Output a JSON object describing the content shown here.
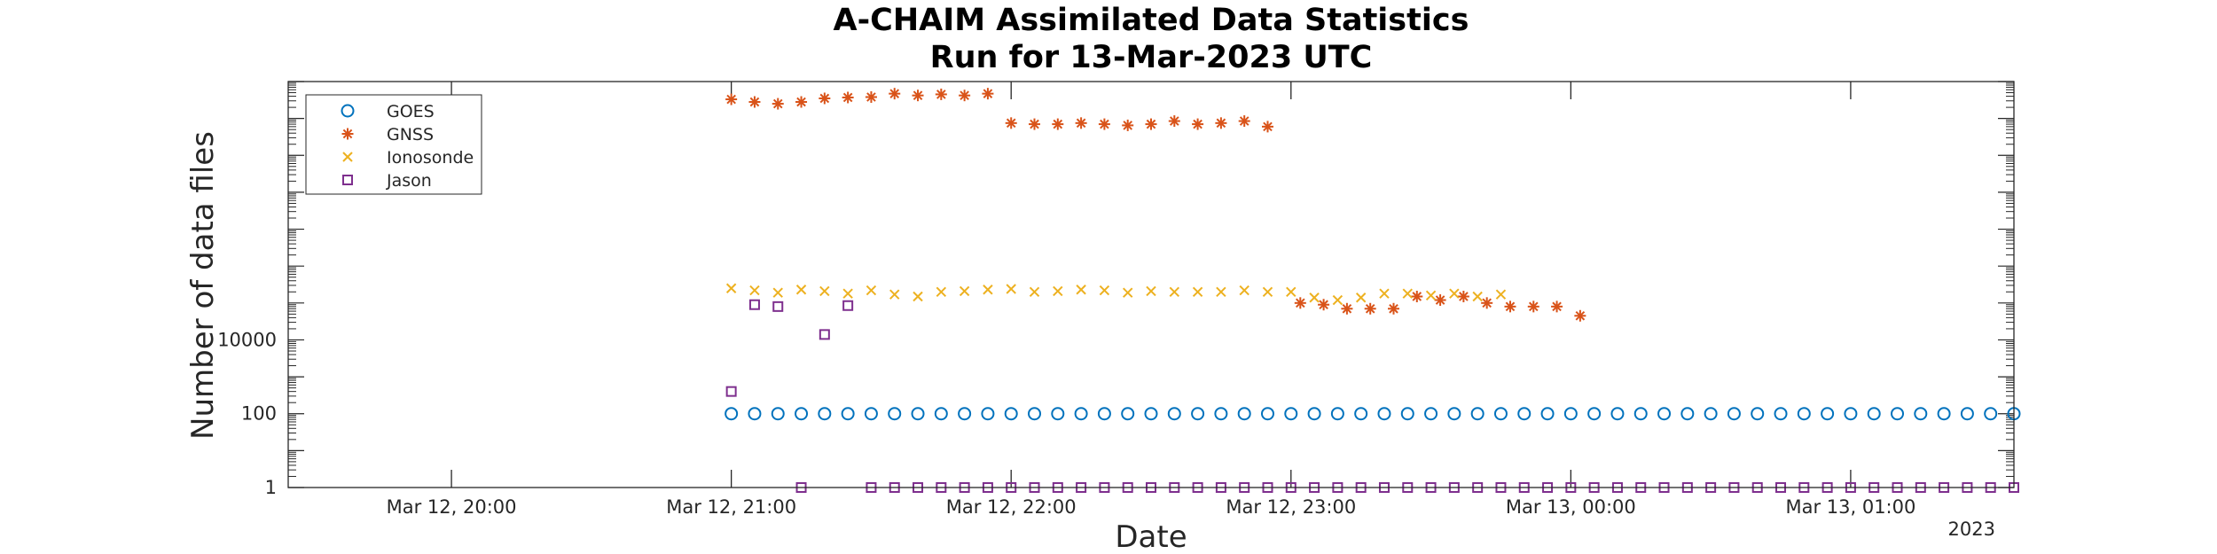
{
  "chart_data": {
    "type": "scatter",
    "title": "A-CHAIM Assimilated Data Statistics",
    "subtitle": "Run for 13-Mar-2023 UTC",
    "xlabel": "Date",
    "ylabel": "Number of data files",
    "x_ticks": [
      "Mar 12, 20:00",
      "Mar 12, 21:00",
      "Mar 12, 22:00",
      "Mar 12, 23:00",
      "Mar 13, 00:00",
      "Mar 13, 01:00"
    ],
    "x_secondary_label": "2023",
    "xlim": [
      "2023-03-12T19:25",
      "2023-03-13T01:35"
    ],
    "y_scale": "log",
    "y_ticks": [
      1,
      100,
      10000
    ],
    "y_tick_labels": [
      "1",
      "100",
      "10000"
    ],
    "ylim": [
      1,
      100000000000
    ],
    "grid": false,
    "legend_position": "top-left",
    "series": [
      {
        "name": "GOES",
        "marker": "circle",
        "color": "#0072BD",
        "points": [
          [
            "2023-03-12T21:00",
            100
          ],
          [
            "2023-03-12T21:05",
            100
          ],
          [
            "2023-03-12T21:10",
            100
          ],
          [
            "2023-03-12T21:15",
            100
          ],
          [
            "2023-03-12T21:20",
            100
          ],
          [
            "2023-03-12T21:25",
            100
          ],
          [
            "2023-03-12T21:30",
            100
          ],
          [
            "2023-03-12T21:35",
            100
          ],
          [
            "2023-03-12T21:40",
            100
          ],
          [
            "2023-03-12T21:45",
            100
          ],
          [
            "2023-03-12T21:50",
            100
          ],
          [
            "2023-03-12T21:55",
            100
          ],
          [
            "2023-03-12T22:00",
            100
          ],
          [
            "2023-03-12T22:05",
            100
          ],
          [
            "2023-03-12T22:10",
            100
          ],
          [
            "2023-03-12T22:15",
            100
          ],
          [
            "2023-03-12T22:20",
            100
          ],
          [
            "2023-03-12T22:25",
            100
          ],
          [
            "2023-03-12T22:30",
            100
          ],
          [
            "2023-03-12T22:35",
            100
          ],
          [
            "2023-03-12T22:40",
            100
          ],
          [
            "2023-03-12T22:45",
            100
          ],
          [
            "2023-03-12T22:50",
            100
          ],
          [
            "2023-03-12T22:55",
            100
          ],
          [
            "2023-03-12T23:00",
            100
          ],
          [
            "2023-03-12T23:05",
            100
          ],
          [
            "2023-03-12T23:10",
            100
          ],
          [
            "2023-03-12T23:15",
            100
          ],
          [
            "2023-03-12T23:20",
            100
          ],
          [
            "2023-03-12T23:25",
            100
          ],
          [
            "2023-03-12T23:30",
            100
          ],
          [
            "2023-03-12T23:35",
            100
          ],
          [
            "2023-03-12T23:40",
            100
          ],
          [
            "2023-03-12T23:45",
            100
          ],
          [
            "2023-03-12T23:50",
            100
          ],
          [
            "2023-03-12T23:55",
            100
          ],
          [
            "2023-03-13T00:00",
            100
          ],
          [
            "2023-03-13T00:05",
            100
          ],
          [
            "2023-03-13T00:10",
            100
          ],
          [
            "2023-03-13T00:15",
            100
          ],
          [
            "2023-03-13T00:20",
            100
          ],
          [
            "2023-03-13T00:25",
            100
          ],
          [
            "2023-03-13T00:30",
            100
          ],
          [
            "2023-03-13T00:35",
            100
          ],
          [
            "2023-03-13T00:40",
            100
          ],
          [
            "2023-03-13T00:45",
            100
          ],
          [
            "2023-03-13T00:50",
            100
          ],
          [
            "2023-03-13T00:55",
            100
          ],
          [
            "2023-03-13T01:00",
            100
          ],
          [
            "2023-03-13T01:05",
            100
          ],
          [
            "2023-03-13T01:10",
            100
          ],
          [
            "2023-03-13T01:15",
            100
          ],
          [
            "2023-03-13T01:20",
            100
          ],
          [
            "2023-03-13T01:25",
            100
          ],
          [
            "2023-03-13T01:30",
            100
          ],
          [
            "2023-03-13T01:35",
            100
          ]
        ]
      },
      {
        "name": "GNSS",
        "marker": "asterisk",
        "color": "#D95319",
        "points": [
          [
            "2023-03-12T21:00",
            33000000000
          ],
          [
            "2023-03-12T21:05",
            28000000000
          ],
          [
            "2023-03-12T21:10",
            25000000000
          ],
          [
            "2023-03-12T21:15",
            28000000000
          ],
          [
            "2023-03-12T21:20",
            35000000000
          ],
          [
            "2023-03-12T21:25",
            37000000000
          ],
          [
            "2023-03-12T21:30",
            38000000000
          ],
          [
            "2023-03-12T21:35",
            47000000000
          ],
          [
            "2023-03-12T21:40",
            42000000000
          ],
          [
            "2023-03-12T21:45",
            45000000000
          ],
          [
            "2023-03-12T21:50",
            42000000000
          ],
          [
            "2023-03-12T21:55",
            47000000000
          ],
          [
            "2023-03-12T22:00",
            7500000000
          ],
          [
            "2023-03-12T22:05",
            7000000000
          ],
          [
            "2023-03-12T22:10",
            7000000000
          ],
          [
            "2023-03-12T22:15",
            7500000000
          ],
          [
            "2023-03-12T22:20",
            7000000000
          ],
          [
            "2023-03-12T22:25",
            6500000000
          ],
          [
            "2023-03-12T22:30",
            7000000000
          ],
          [
            "2023-03-12T22:35",
            8500000000
          ],
          [
            "2023-03-12T22:40",
            7000000000
          ],
          [
            "2023-03-12T22:45",
            7500000000
          ],
          [
            "2023-03-12T22:50",
            8500000000
          ],
          [
            "2023-03-12T22:55",
            6000000000
          ],
          [
            "2023-03-12T23:02",
            100000
          ],
          [
            "2023-03-12T23:07",
            90000
          ],
          [
            "2023-03-12T23:12",
            70000
          ],
          [
            "2023-03-12T23:17",
            70000
          ],
          [
            "2023-03-12T23:22",
            70000
          ],
          [
            "2023-03-12T23:27",
            150000
          ],
          [
            "2023-03-12T23:32",
            120000
          ],
          [
            "2023-03-12T23:37",
            150000
          ],
          [
            "2023-03-12T23:42",
            100000
          ],
          [
            "2023-03-12T23:47",
            80000
          ],
          [
            "2023-03-12T23:52",
            80000
          ],
          [
            "2023-03-12T23:57",
            80000
          ],
          [
            "2023-03-13T00:02",
            45000
          ]
        ]
      },
      {
        "name": "Ionosonde",
        "marker": "x",
        "color": "#EDB120",
        "points": [
          [
            "2023-03-12T21:00",
            250000
          ],
          [
            "2023-03-12T21:05",
            220000
          ],
          [
            "2023-03-12T21:10",
            190000
          ],
          [
            "2023-03-12T21:15",
            230000
          ],
          [
            "2023-03-12T21:20",
            210000
          ],
          [
            "2023-03-12T21:25",
            180000
          ],
          [
            "2023-03-12T21:30",
            220000
          ],
          [
            "2023-03-12T21:35",
            170000
          ],
          [
            "2023-03-12T21:40",
            150000
          ],
          [
            "2023-03-12T21:45",
            200000
          ],
          [
            "2023-03-12T21:50",
            210000
          ],
          [
            "2023-03-12T21:55",
            230000
          ],
          [
            "2023-03-12T22:00",
            240000
          ],
          [
            "2023-03-12T22:05",
            200000
          ],
          [
            "2023-03-12T22:10",
            210000
          ],
          [
            "2023-03-12T22:15",
            230000
          ],
          [
            "2023-03-12T22:20",
            220000
          ],
          [
            "2023-03-12T22:25",
            190000
          ],
          [
            "2023-03-12T22:30",
            210000
          ],
          [
            "2023-03-12T22:35",
            200000
          ],
          [
            "2023-03-12T22:40",
            200000
          ],
          [
            "2023-03-12T22:45",
            200000
          ],
          [
            "2023-03-12T22:50",
            220000
          ],
          [
            "2023-03-12T22:55",
            200000
          ],
          [
            "2023-03-12T23:00",
            200000
          ],
          [
            "2023-03-12T23:05",
            140000
          ],
          [
            "2023-03-12T23:10",
            120000
          ],
          [
            "2023-03-12T23:15",
            140000
          ],
          [
            "2023-03-12T23:20",
            180000
          ],
          [
            "2023-03-12T23:25",
            180000
          ],
          [
            "2023-03-12T23:30",
            160000
          ],
          [
            "2023-03-12T23:35",
            180000
          ],
          [
            "2023-03-12T23:40",
            150000
          ],
          [
            "2023-03-12T23:45",
            170000
          ]
        ]
      },
      {
        "name": "Jason",
        "marker": "square",
        "color": "#7E2F8E",
        "points": [
          [
            "2023-03-12T21:00",
            400
          ],
          [
            "2023-03-12T21:05",
            90000
          ],
          [
            "2023-03-12T21:10",
            80000
          ],
          [
            "2023-03-12T21:15",
            1
          ],
          [
            "2023-03-12T21:20",
            14000
          ],
          [
            "2023-03-12T21:25",
            85000
          ],
          [
            "2023-03-12T21:30",
            1
          ],
          [
            "2023-03-12T21:35",
            1
          ],
          [
            "2023-03-12T21:40",
            1
          ],
          [
            "2023-03-12T21:45",
            1
          ],
          [
            "2023-03-12T21:50",
            1
          ],
          [
            "2023-03-12T21:55",
            1
          ],
          [
            "2023-03-12T22:00",
            1
          ],
          [
            "2023-03-12T22:05",
            1
          ],
          [
            "2023-03-12T22:10",
            1
          ],
          [
            "2023-03-12T22:15",
            1
          ],
          [
            "2023-03-12T22:20",
            1
          ],
          [
            "2023-03-12T22:25",
            1
          ],
          [
            "2023-03-12T22:30",
            1
          ],
          [
            "2023-03-12T22:35",
            1
          ],
          [
            "2023-03-12T22:40",
            1
          ],
          [
            "2023-03-12T22:45",
            1
          ],
          [
            "2023-03-12T22:50",
            1
          ],
          [
            "2023-03-12T22:55",
            1
          ],
          [
            "2023-03-12T23:00",
            1
          ],
          [
            "2023-03-12T23:05",
            1
          ],
          [
            "2023-03-12T23:10",
            1
          ],
          [
            "2023-03-12T23:15",
            1
          ],
          [
            "2023-03-12T23:20",
            1
          ],
          [
            "2023-03-12T23:25",
            1
          ],
          [
            "2023-03-12T23:30",
            1
          ],
          [
            "2023-03-12T23:35",
            1
          ],
          [
            "2023-03-12T23:40",
            1
          ],
          [
            "2023-03-12T23:45",
            1
          ],
          [
            "2023-03-12T23:50",
            1
          ],
          [
            "2023-03-12T23:55",
            1
          ],
          [
            "2023-03-13T00:00",
            1
          ],
          [
            "2023-03-13T00:05",
            1
          ],
          [
            "2023-03-13T00:10",
            1
          ],
          [
            "2023-03-13T00:15",
            1
          ],
          [
            "2023-03-13T00:20",
            1
          ],
          [
            "2023-03-13T00:25",
            1
          ],
          [
            "2023-03-13T00:30",
            1
          ],
          [
            "2023-03-13T00:35",
            1
          ],
          [
            "2023-03-13T00:40",
            1
          ],
          [
            "2023-03-13T00:45",
            1
          ],
          [
            "2023-03-13T00:50",
            1
          ],
          [
            "2023-03-13T00:55",
            1
          ],
          [
            "2023-03-13T01:00",
            1
          ],
          [
            "2023-03-13T01:05",
            1
          ],
          [
            "2023-03-13T01:10",
            1
          ],
          [
            "2023-03-13T01:15",
            1
          ],
          [
            "2023-03-13T01:20",
            1
          ],
          [
            "2023-03-13T01:25",
            1
          ],
          [
            "2023-03-13T01:30",
            1
          ],
          [
            "2023-03-13T01:35",
            1
          ]
        ]
      }
    ]
  }
}
